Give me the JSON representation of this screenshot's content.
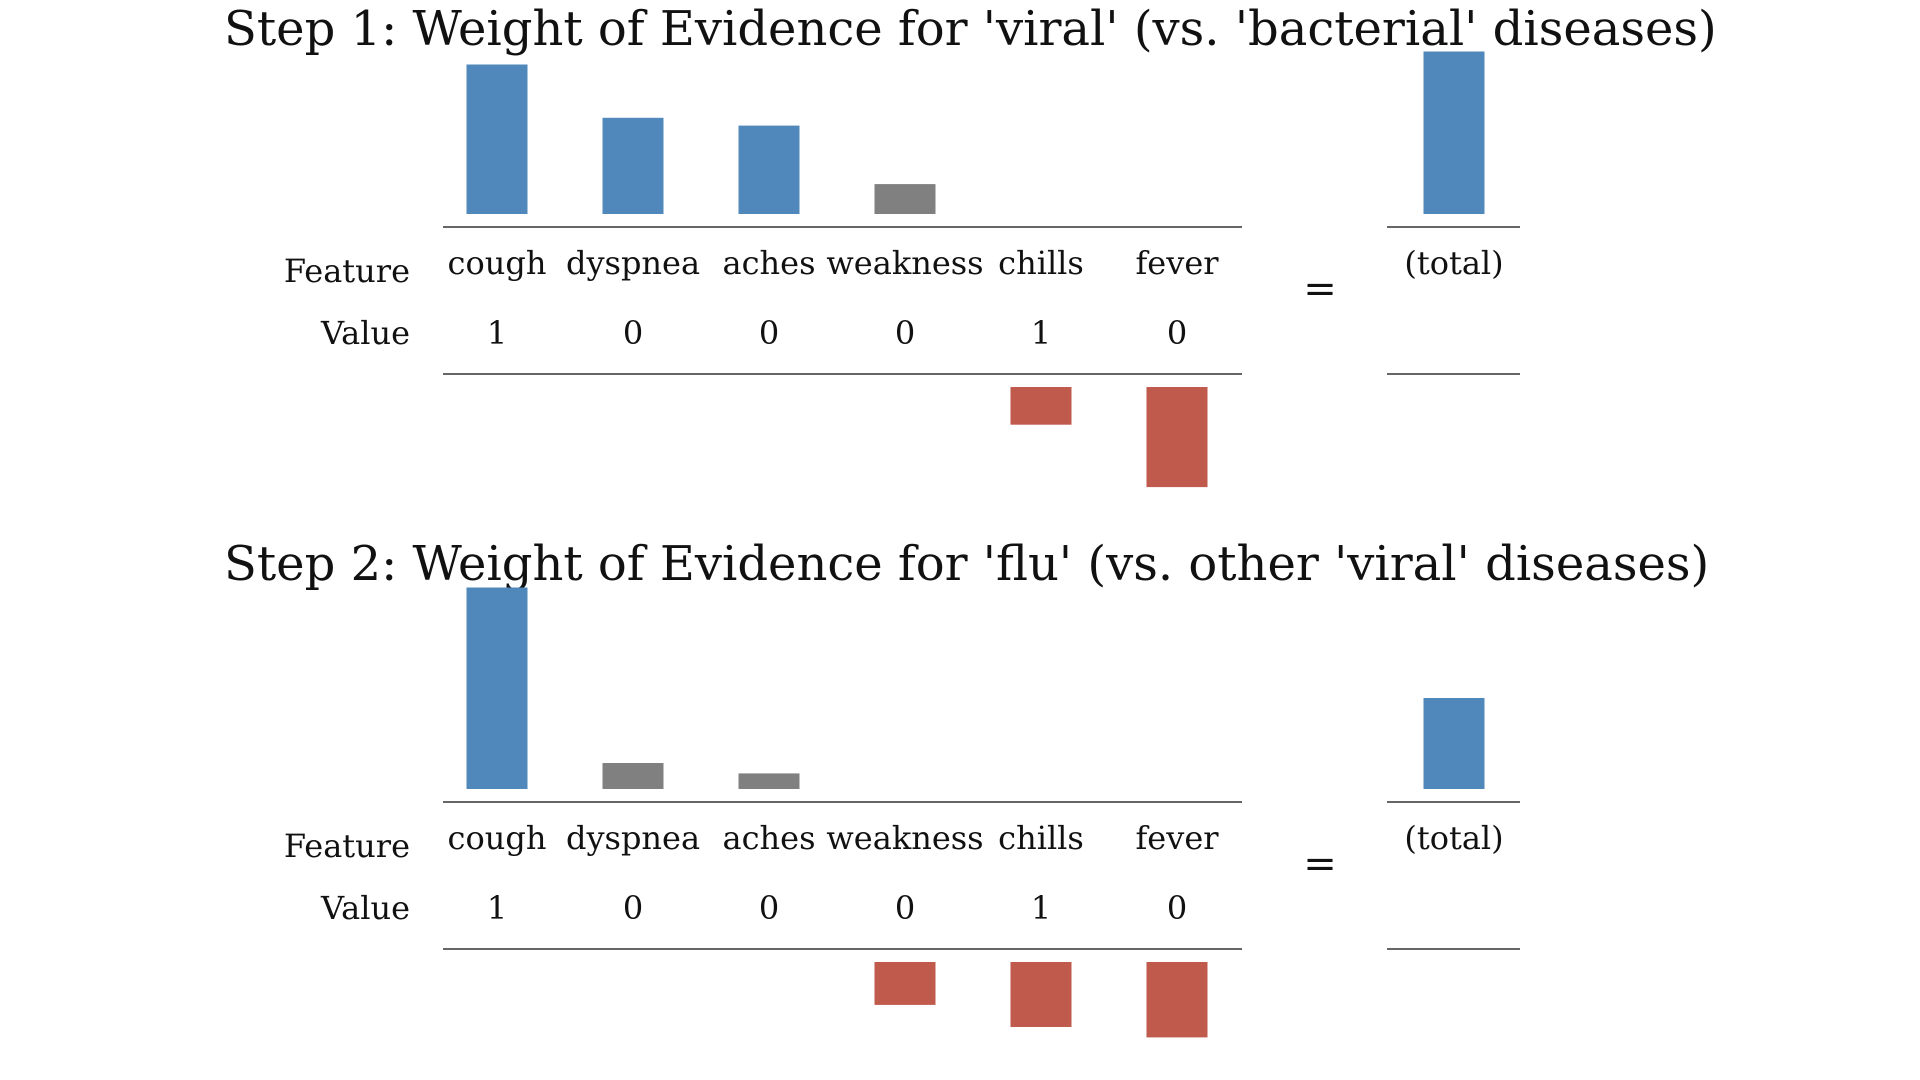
{
  "panels": [
    {
      "title": "Step 1: Weight of Evidence for 'viral' (vs. 'bacterial' diseases)",
      "row_labels": {
        "feature": "Feature",
        "value": "Value"
      },
      "equals": "=",
      "total_label": "(total)"
    },
    {
      "title": "Step 2: Weight of Evidence for 'flu' (vs. other 'viral' diseases)",
      "row_labels": {
        "feature": "Feature",
        "value": "Value"
      },
      "equals": "=",
      "total_label": "(total)"
    }
  ],
  "colors": {
    "positive": "#5088bb",
    "negative": "#c05a4c",
    "neutral": "#808080",
    "axis": "#333333",
    "equals": "#999999"
  },
  "chart_data": [
    {
      "type": "bar",
      "title": "Step 1: Weight of Evidence for 'viral' (vs. 'bacterial' diseases)",
      "categories": [
        "cough",
        "dyspnea",
        "aches",
        "weakness",
        "chills",
        "fever"
      ],
      "feature_values": [
        "1",
        "0",
        "0",
        "0",
        "1",
        "0"
      ],
      "values": [
        1.15,
        0.74,
        0.68,
        0.23,
        -0.29,
        -0.77
      ],
      "bar_colors": [
        "positive",
        "positive",
        "positive",
        "neutral",
        "negative",
        "negative"
      ],
      "total": {
        "label": "(total)",
        "value": 1.25,
        "color": "positive"
      },
      "ylim": [
        -1.3,
        1.3
      ],
      "grid": false,
      "legend": "none"
    },
    {
      "type": "bar",
      "title": "Step 2: Weight of Evidence for 'flu' (vs. other 'viral' diseases)",
      "categories": [
        "cough",
        "dyspnea",
        "aches",
        "weakness",
        "chills",
        "fever"
      ],
      "feature_values": [
        "1",
        "0",
        "0",
        "0",
        "1",
        "0"
      ],
      "values": [
        1.55,
        0.2,
        0.12,
        -0.33,
        -0.5,
        -0.58
      ],
      "bar_colors": [
        "positive",
        "neutral",
        "neutral",
        "negative",
        "negative",
        "negative"
      ],
      "total": {
        "label": "(total)",
        "value": 0.7,
        "color": "positive"
      },
      "ylim": [
        -1.3,
        1.6
      ],
      "grid": false,
      "legend": "none"
    }
  ]
}
